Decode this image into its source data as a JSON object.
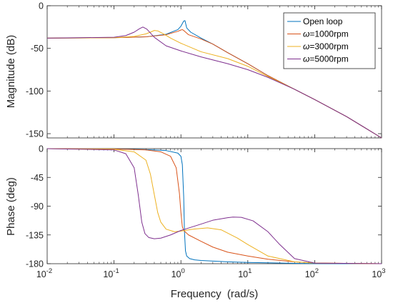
{
  "chart_data": [
    {
      "type": "line",
      "panel": "magnitude",
      "ylabel": "Magnitude (dB)",
      "xlabel": "",
      "xscale": "log",
      "xlim": [
        0.01,
        1000
      ],
      "ylim": [
        -155,
        0
      ],
      "yticks": [
        0,
        -50,
        -100,
        -150
      ],
      "ytick_labels": [
        "0",
        "-50",
        "-100",
        "-150"
      ],
      "grid": false,
      "legend": {
        "placement": "top-right",
        "entries": [
          {
            "prefix": "",
            "suffix": "Open loop",
            "series": 0
          },
          {
            "prefix": "ω",
            "suffix": "=1000rpm",
            "series": 1
          },
          {
            "prefix": "ω",
            "suffix": "=3000rpm",
            "series": 2
          },
          {
            "prefix": "ω",
            "suffix": "=5000rpm",
            "series": 3
          }
        ]
      },
      "series": [
        {
          "color": "#0072BD",
          "x": [
            0.01,
            0.1,
            0.3,
            0.6,
            0.9,
            1.0,
            1.1,
            1.15,
            1.22,
            1.4,
            2,
            3,
            5,
            10,
            20,
            50,
            100,
            300,
            1000
          ],
          "y": [
            -38,
            -37.5,
            -36.5,
            -33.5,
            -28,
            -24,
            -18,
            -17.5,
            -26,
            -31,
            -38,
            -45,
            -55,
            -68,
            -82,
            -98,
            -110,
            -130,
            -155
          ]
        },
        {
          "color": "#D95319",
          "x": [
            0.01,
            0.1,
            0.3,
            0.6,
            0.9,
            1.0,
            1.05,
            1.1,
            1.3,
            2,
            3,
            5,
            10,
            20,
            50,
            100,
            300,
            1000
          ],
          "y": [
            -38,
            -37.5,
            -36.5,
            -34,
            -30,
            -28.5,
            -28,
            -29,
            -34,
            -39,
            -45,
            -55,
            -68,
            -82,
            -98,
            -110,
            -130,
            -155
          ]
        },
        {
          "color": "#EDB120",
          "x": [
            0.01,
            0.1,
            0.2,
            0.3,
            0.35,
            0.4,
            0.45,
            0.55,
            0.7,
            1.0,
            2,
            5,
            10,
            20,
            50,
            100,
            300,
            1000
          ],
          "y": [
            -38,
            -37.5,
            -36,
            -33,
            -31,
            -29,
            -29.5,
            -33,
            -38,
            -44,
            -54,
            -62,
            -71,
            -83,
            -98,
            -110,
            -130,
            -155
          ]
        },
        {
          "color": "#7E2F8E",
          "x": [
            0.01,
            0.1,
            0.15,
            0.2,
            0.24,
            0.27,
            0.31,
            0.4,
            0.6,
            1.0,
            2,
            5,
            10,
            20,
            50,
            100,
            300,
            1000
          ],
          "y": [
            -38,
            -37,
            -35,
            -31,
            -27,
            -25,
            -27.5,
            -37,
            -47,
            -53,
            -60,
            -68,
            -75,
            -84,
            -98,
            -110,
            -130,
            -155
          ]
        }
      ]
    },
    {
      "type": "line",
      "panel": "phase",
      "ylabel": "Phase (deg)",
      "xlabel": "Frequency  (rad/s)",
      "xscale": "log",
      "xlim": [
        0.01,
        1000
      ],
      "ylim": [
        -180,
        0
      ],
      "xticks": [
        0.01,
        0.1,
        1,
        10,
        100,
        1000
      ],
      "xtick_labels": [
        [
          "10",
          "-2"
        ],
        [
          "10",
          "-1"
        ],
        [
          "10",
          "0"
        ],
        [
          "10",
          "1"
        ],
        [
          "10",
          "2"
        ],
        [
          "10",
          "3"
        ]
      ],
      "yticks": [
        0,
        -45,
        -90,
        -135,
        -180
      ],
      "ytick_labels": [
        "0",
        "-45",
        "-90",
        "-135",
        "-180"
      ],
      "grid": false,
      "series": [
        {
          "color": "#0072BD",
          "x": [
            0.01,
            0.1,
            0.3,
            0.6,
            0.9,
            1.0,
            1.05,
            1.1,
            1.13,
            1.17,
            1.22,
            1.35,
            1.6,
            2,
            5,
            10,
            50,
            100,
            1000
          ],
          "y": [
            0,
            -0.5,
            -1.5,
            -3,
            -7,
            -12,
            -25,
            -75,
            -130,
            -160,
            -168,
            -172,
            -174,
            -175,
            -177,
            -178,
            -179.5,
            -179.8,
            -180
          ]
        },
        {
          "color": "#D95319",
          "x": [
            0.01,
            0.1,
            0.3,
            0.5,
            0.7,
            0.85,
            0.95,
            1.0,
            1.05,
            1.1,
            1.3,
            2,
            3,
            5,
            10,
            20,
            50,
            100,
            1000
          ],
          "y": [
            0,
            -0.5,
            -2,
            -5,
            -12,
            -30,
            -70,
            -100,
            -122,
            -128,
            -135,
            -145,
            -154,
            -162,
            -168,
            -173,
            -177,
            -179,
            -180
          ]
        },
        {
          "color": "#EDB120",
          "x": [
            0.01,
            0.1,
            0.2,
            0.3,
            0.35,
            0.4,
            0.45,
            0.5,
            0.6,
            0.8,
            1.0,
            1.5,
            2.5,
            4,
            7,
            10,
            20,
            50,
            100,
            1000
          ],
          "y": [
            0,
            -1,
            -5,
            -18,
            -40,
            -72,
            -100,
            -115,
            -126,
            -130,
            -129,
            -126,
            -124,
            -127,
            -140,
            -150,
            -168,
            -177,
            -179,
            -180
          ]
        },
        {
          "color": "#7E2F8E",
          "x": [
            0.01,
            0.1,
            0.15,
            0.2,
            0.23,
            0.26,
            0.29,
            0.33,
            0.4,
            0.5,
            0.7,
            1.0,
            2,
            3,
            5,
            6,
            8,
            12,
            20,
            30,
            50,
            100,
            1000
          ],
          "y": [
            0,
            -2,
            -8,
            -30,
            -72,
            -115,
            -133,
            -139,
            -141,
            -140,
            -135,
            -128,
            -118,
            -112,
            -108,
            -107,
            -107.5,
            -113,
            -130,
            -150,
            -172,
            -179,
            -180
          ]
        }
      ]
    }
  ]
}
